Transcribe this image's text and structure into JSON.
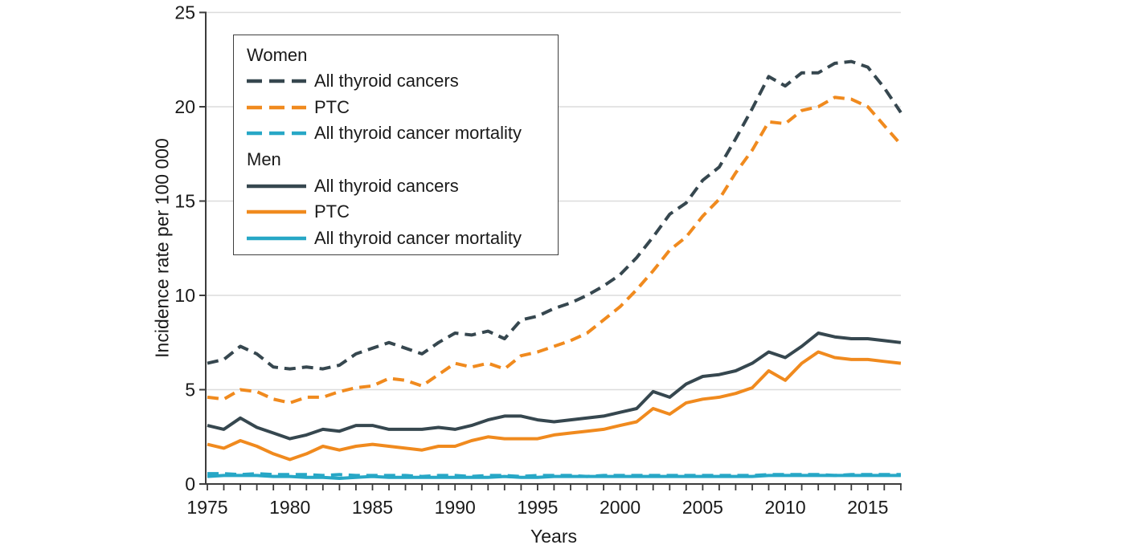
{
  "figure": {
    "y_axis_title": "Incidence rate per 100 000",
    "x_axis_title": "Years"
  },
  "colors": {
    "dark": "#36474F",
    "orange": "#F08A1E",
    "blue": "#27A7C6",
    "grid": "#DCDCDC",
    "axis": "#3C3C3C",
    "text": "#1A1A1A",
    "legend_border": "#3F3F3F",
    "background": "#FFFFFF"
  },
  "legend": {
    "groups": [
      {
        "header": "Women",
        "items": [
          {
            "label": "All thyroid cancers",
            "series": "women_all"
          },
          {
            "label": "PTC",
            "series": "women_ptc"
          },
          {
            "label": "All thyroid cancer mortality",
            "series": "women_mortality"
          }
        ]
      },
      {
        "header": "Men",
        "items": [
          {
            "label": "All thyroid cancers",
            "series": "men_all"
          },
          {
            "label": "PTC",
            "series": "men_ptc"
          },
          {
            "label": "All thyroid cancer mortality",
            "series": "men_mortality"
          }
        ]
      }
    ]
  },
  "chart_data": {
    "type": "line",
    "title": "",
    "xlabel": "Years",
    "ylabel": "Incidence rate per 100 000",
    "xlim": [
      1975,
      2017
    ],
    "ylim": [
      0,
      25
    ],
    "grid": "horizontal",
    "legend_position": "top-left-inside",
    "y_ticks": [
      0,
      5,
      10,
      15,
      20,
      25
    ],
    "x_tick_labels": [
      1975,
      1980,
      1985,
      1990,
      1995,
      2000,
      2005,
      2010,
      2015
    ],
    "x": [
      1975,
      1976,
      1977,
      1978,
      1979,
      1980,
      1981,
      1982,
      1983,
      1984,
      1985,
      1986,
      1987,
      1988,
      1989,
      1990,
      1991,
      1992,
      1993,
      1994,
      1995,
      1996,
      1997,
      1998,
      1999,
      2000,
      2001,
      2002,
      2003,
      2004,
      2005,
      2006,
      2007,
      2008,
      2009,
      2010,
      2011,
      2012,
      2013,
      2014,
      2015,
      2016,
      2017
    ],
    "series": [
      {
        "id": "women_all",
        "group": "Women",
        "name": "All thyroid cancers",
        "color": "dark",
        "dash": "dashed",
        "width": 4,
        "values": [
          6.4,
          6.6,
          7.3,
          6.9,
          6.2,
          6.1,
          6.2,
          6.1,
          6.3,
          6.9,
          7.2,
          7.5,
          7.2,
          6.9,
          7.5,
          8.0,
          7.9,
          8.1,
          7.7,
          8.7,
          8.9,
          9.3,
          9.6,
          10.0,
          10.5,
          11.1,
          12.0,
          13.1,
          14.3,
          14.9,
          16.1,
          16.8,
          18.3,
          19.9,
          21.6,
          21.1,
          21.8,
          21.8,
          22.3,
          22.4,
          22.1,
          21.0,
          19.7
        ]
      },
      {
        "id": "women_ptc",
        "group": "Women",
        "name": "PTC",
        "color": "orange",
        "dash": "dashed",
        "width": 4,
        "values": [
          4.6,
          4.5,
          5.0,
          4.9,
          4.5,
          4.3,
          4.6,
          4.6,
          4.9,
          5.1,
          5.2,
          5.6,
          5.5,
          5.2,
          5.8,
          6.4,
          6.2,
          6.4,
          6.1,
          6.8,
          7.0,
          7.3,
          7.6,
          8.0,
          8.7,
          9.4,
          10.3,
          11.3,
          12.4,
          13.1,
          14.2,
          15.1,
          16.5,
          17.7,
          19.2,
          19.1,
          19.8,
          20.0,
          20.5,
          20.4,
          20.0,
          19.0,
          18.0
        ]
      },
      {
        "id": "women_mortality",
        "group": "Women",
        "name": "All thyroid cancer mortality",
        "color": "blue",
        "dash": "dashed",
        "width": 4,
        "values": [
          0.55,
          0.55,
          0.5,
          0.55,
          0.5,
          0.5,
          0.5,
          0.45,
          0.5,
          0.45,
          0.45,
          0.45,
          0.45,
          0.4,
          0.45,
          0.45,
          0.4,
          0.45,
          0.45,
          0.4,
          0.45,
          0.45,
          0.45,
          0.4,
          0.45,
          0.45,
          0.45,
          0.45,
          0.45,
          0.45,
          0.45,
          0.45,
          0.45,
          0.45,
          0.5,
          0.5,
          0.5,
          0.5,
          0.45,
          0.5,
          0.5,
          0.5,
          0.5
        ]
      },
      {
        "id": "men_all",
        "group": "Men",
        "name": "All thyroid cancers",
        "color": "dark",
        "dash": "solid",
        "width": 4,
        "values": [
          3.1,
          2.9,
          3.5,
          3.0,
          2.7,
          2.4,
          2.6,
          2.9,
          2.8,
          3.1,
          3.1,
          2.9,
          2.9,
          2.9,
          3.0,
          2.9,
          3.1,
          3.4,
          3.6,
          3.6,
          3.4,
          3.3,
          3.4,
          3.5,
          3.6,
          3.8,
          4.0,
          4.9,
          4.6,
          5.3,
          5.7,
          5.8,
          6.0,
          6.4,
          7.0,
          6.7,
          7.3,
          8.0,
          7.8,
          7.7,
          7.7,
          7.6,
          7.5
        ]
      },
      {
        "id": "men_ptc",
        "group": "Men",
        "name": "PTC",
        "color": "orange",
        "dash": "solid",
        "width": 4,
        "values": [
          2.1,
          1.9,
          2.3,
          2.0,
          1.6,
          1.3,
          1.6,
          2.0,
          1.8,
          2.0,
          2.1,
          2.0,
          1.9,
          1.8,
          2.0,
          2.0,
          2.3,
          2.5,
          2.4,
          2.4,
          2.4,
          2.6,
          2.7,
          2.8,
          2.9,
          3.1,
          3.3,
          4.0,
          3.7,
          4.3,
          4.5,
          4.6,
          4.8,
          5.1,
          6.0,
          5.5,
          6.4,
          7.0,
          6.7,
          6.6,
          6.6,
          6.5,
          6.4
        ]
      },
      {
        "id": "men_mortality",
        "group": "Men",
        "name": "All thyroid cancer mortality",
        "color": "blue",
        "dash": "solid",
        "width": 4,
        "values": [
          0.4,
          0.45,
          0.45,
          0.45,
          0.4,
          0.4,
          0.35,
          0.35,
          0.3,
          0.35,
          0.4,
          0.35,
          0.35,
          0.35,
          0.35,
          0.35,
          0.35,
          0.35,
          0.4,
          0.35,
          0.35,
          0.4,
          0.4,
          0.4,
          0.4,
          0.4,
          0.4,
          0.4,
          0.4,
          0.4,
          0.4,
          0.4,
          0.4,
          0.4,
          0.45,
          0.45,
          0.45,
          0.45,
          0.45,
          0.45,
          0.45,
          0.45,
          0.45
        ]
      }
    ]
  }
}
